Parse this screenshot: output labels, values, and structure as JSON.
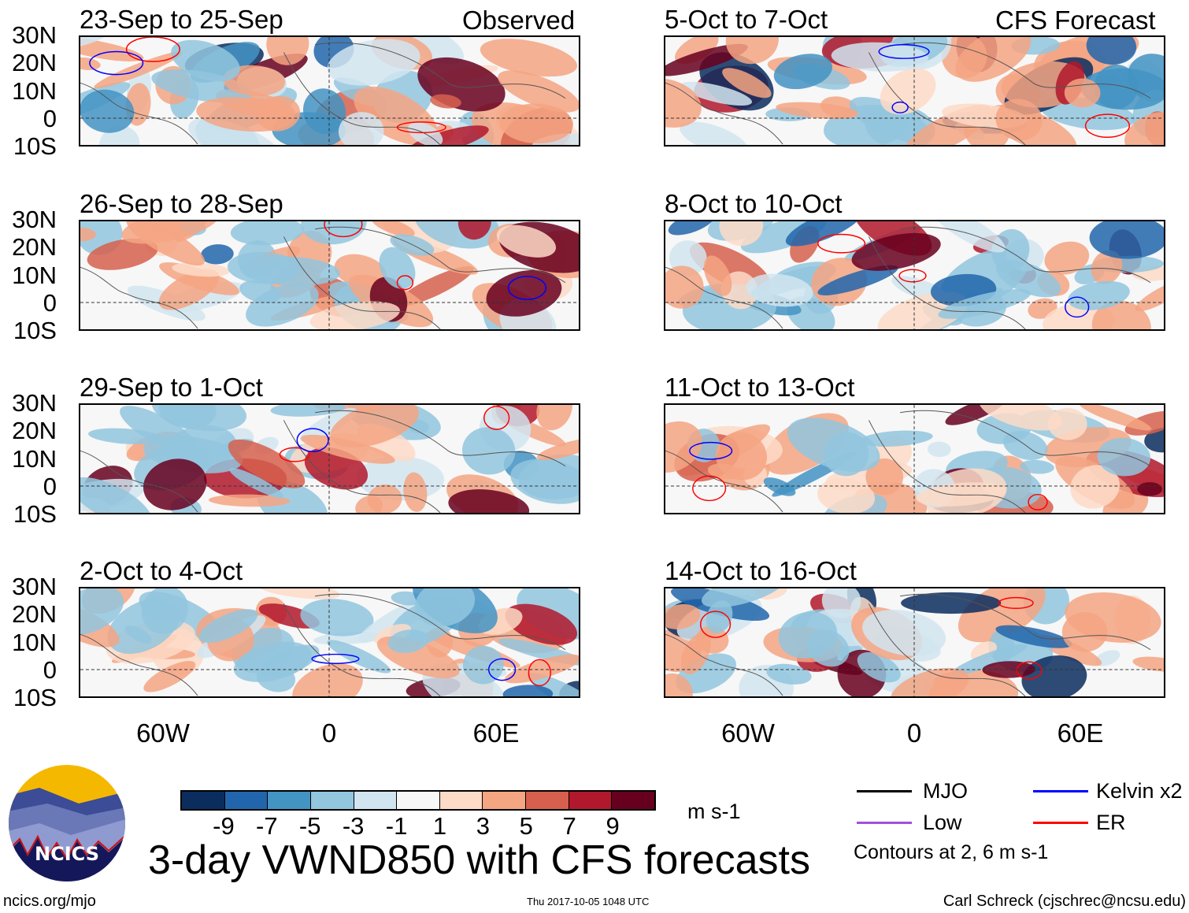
{
  "panels_observed": {
    "header_label": "Observed",
    "titles": [
      "23-Sep to 25-Sep",
      "26-Sep to 28-Sep",
      "29-Sep to 1-Oct",
      "2-Oct to 4-Oct"
    ]
  },
  "panels_forecast": {
    "header_label": "CFS Forecast",
    "titles": [
      "5-Oct to 7-Oct",
      "8-Oct to 10-Oct",
      "11-Oct to 13-Oct",
      "14-Oct to 16-Oct"
    ]
  },
  "lat_labels": [
    "30N",
    "20N",
    "10N",
    "0",
    "10S"
  ],
  "lon_labels": [
    "60W",
    "0",
    "60E"
  ],
  "colorbar": {
    "colors": [
      "#0a2d5e",
      "#2166ac",
      "#4393c3",
      "#92c5de",
      "#d1e5f0",
      "#f7f7f7",
      "#fddbc7",
      "#f4a582",
      "#d6604d",
      "#b2182b",
      "#67001f"
    ],
    "ticks": [
      "-9",
      "-7",
      "-5",
      "-3",
      "-1",
      "1",
      "3",
      "5",
      "7",
      "9"
    ],
    "units": "m s-1"
  },
  "title": "3-day VWND850 with CFS forecasts",
  "legend": {
    "items": [
      {
        "label": "MJO",
        "color": "#000000"
      },
      {
        "label": "Kelvin x2",
        "color": "#0000ff"
      },
      {
        "label": "Low",
        "color": "#a050e0"
      },
      {
        "label": "ER",
        "color": "#ff0000"
      }
    ],
    "note": "Contours at 2, 6 m s-1"
  },
  "logo": {
    "text": "NCICS"
  },
  "footer": {
    "url": "ncics.org/mjo",
    "timestamp": "Thu 2017-10-05 1048 UTC",
    "credit": "Carl Schreck (cjschrec@ncsu.edu)"
  }
}
